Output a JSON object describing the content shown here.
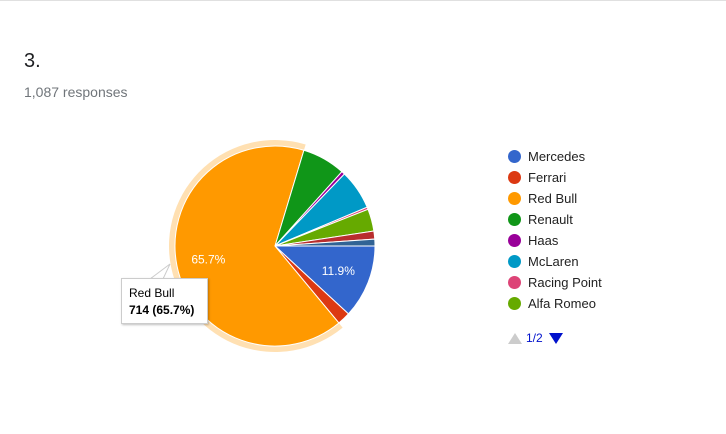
{
  "question": {
    "number": "3.",
    "responses": "1,087 responses"
  },
  "chart_data": {
    "type": "pie",
    "total": 1087,
    "highlighted": "Red Bull",
    "slices": [
      {
        "name": "Mercedes",
        "value": 129,
        "label": "11.9%",
        "color": "#3366cc"
      },
      {
        "name": "Ferrari",
        "value": 23,
        "label": "",
        "color": "#dc3912"
      },
      {
        "name": "Red Bull",
        "value": 714,
        "label": "65.7%",
        "color": "#ff9900"
      },
      {
        "name": "Renault",
        "value": 76,
        "label": "",
        "color": "#109618"
      },
      {
        "name": "Haas",
        "value": 6,
        "label": "",
        "color": "#990099"
      },
      {
        "name": "McLaren",
        "value": 70,
        "label": "",
        "color": "#0099c6"
      },
      {
        "name": "Racing Point",
        "value": 4,
        "label": "",
        "color": "#dd4477"
      },
      {
        "name": "Alfa Romeo",
        "value": 39,
        "label": "",
        "color": "#66aa00"
      },
      {
        "name": "",
        "value": 14,
        "label": "",
        "color": "#b82e2e"
      },
      {
        "name": "",
        "value": 12,
        "label": "",
        "color": "#316395"
      }
    ]
  },
  "legend": {
    "items": [
      {
        "label": "Mercedes",
        "color": "#3366cc"
      },
      {
        "label": "Ferrari",
        "color": "#dc3912"
      },
      {
        "label": "Red Bull",
        "color": "#ff9900"
      },
      {
        "label": "Renault",
        "color": "#109618"
      },
      {
        "label": "Haas",
        "color": "#990099"
      },
      {
        "label": "McLaren",
        "color": "#0099c6"
      },
      {
        "label": "Racing Point",
        "color": "#dd4477"
      },
      {
        "label": "Alfa Romeo",
        "color": "#66aa00"
      }
    ],
    "pager": "1/2"
  },
  "tooltip": {
    "name": "Red Bull",
    "value": "714 (65.7%)"
  }
}
